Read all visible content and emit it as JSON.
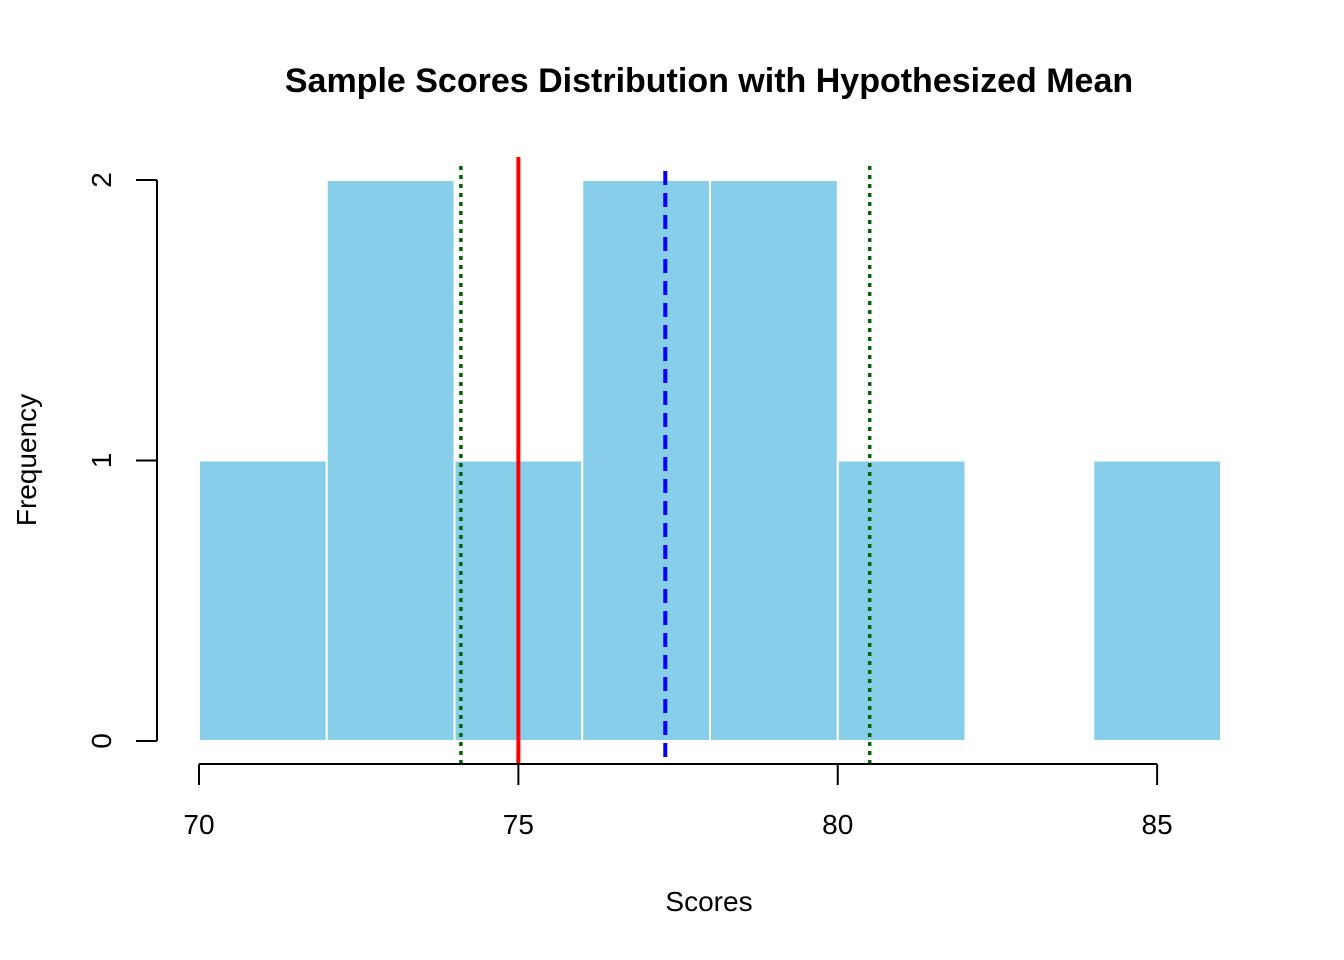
{
  "chart_data": {
    "type": "bar",
    "title": "Sample Scores Distribution with Hypothesized Mean",
    "xlabel": "Scores",
    "ylabel": "Frequency",
    "bins": [
      {
        "start": 70,
        "end": 72,
        "count": 1
      },
      {
        "start": 72,
        "end": 74,
        "count": 2
      },
      {
        "start": 74,
        "end": 76,
        "count": 1
      },
      {
        "start": 76,
        "end": 78,
        "count": 2
      },
      {
        "start": 78,
        "end": 80,
        "count": 2
      },
      {
        "start": 80,
        "end": 82,
        "count": 1
      },
      {
        "start": 82,
        "end": 84,
        "count": 0
      },
      {
        "start": 84,
        "end": 86,
        "count": 1
      }
    ],
    "x_ticks": [
      70,
      75,
      80,
      85
    ],
    "y_ticks": [
      0,
      1,
      2
    ],
    "xlim": [
      70,
      86
    ],
    "ylim": [
      0,
      2
    ],
    "bar_color": "#87CEEB",
    "bar_border_color": "#ffffff",
    "reference_lines": [
      {
        "x": 75,
        "color": "#ff0000",
        "style": "solid"
      },
      {
        "x": 77.3,
        "color": "#0000ff",
        "style": "dashed"
      },
      {
        "x": 74.1,
        "color": "#006400",
        "style": "dotted"
      },
      {
        "x": 80.5,
        "color": "#006400",
        "style": "dotted"
      }
    ]
  }
}
